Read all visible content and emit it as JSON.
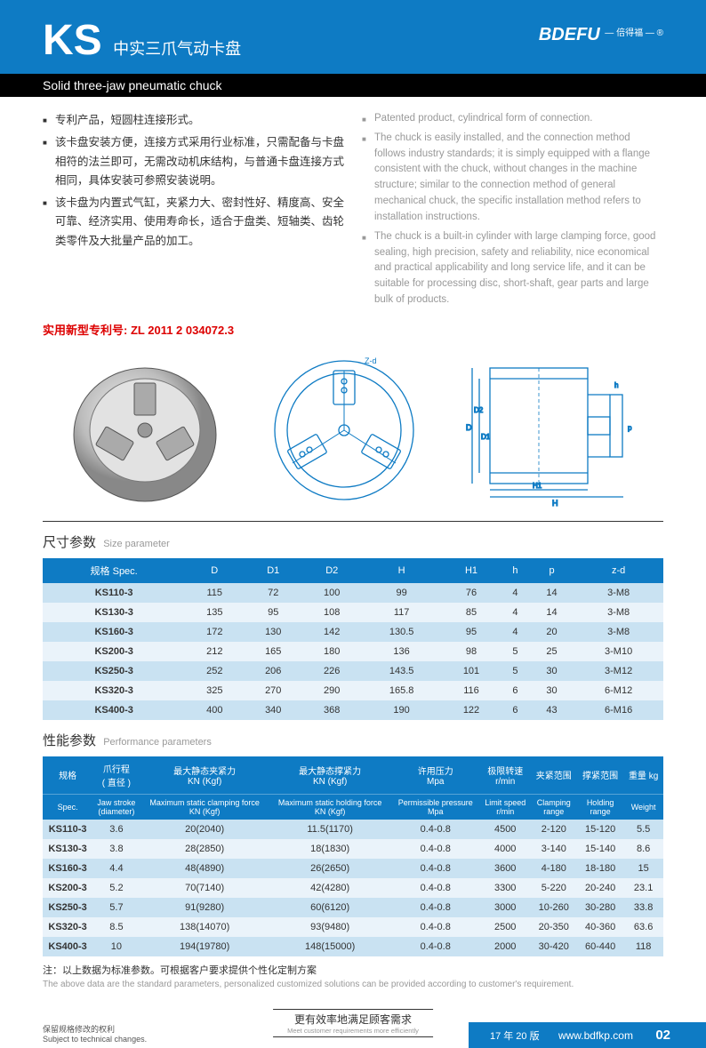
{
  "header": {
    "model": "KS",
    "title_cn": "中实三爪气动卡盘",
    "title_en": "Solid three-jaw pneumatic chuck",
    "logo_main": "BDEFU",
    "logo_tag": "— 倍得福 — ®"
  },
  "bullets_cn": [
    "专利产品，短圆柱连接形式。",
    "该卡盘安装方便，连接方式采用行业标准，只需配备与卡盘相符的法兰即可，无需改动机床结构，与普通卡盘连接方式相同，具体安装可参照安装说明。",
    "该卡盘为内置式气缸，夹紧力大、密封性好、精度高、安全可靠、经济实用、使用寿命长，适合于盘类、短轴类、齿轮类零件及大批量产品的加工。"
  ],
  "bullets_en": [
    "Patented product, cylindrical form of connection.",
    "The chuck is easily installed, and the connection method follows industry standards; it is simply equipped with a flange consistent with the chuck, without changes in the machine structure; similar to the connection method of general mechanical chuck, the specific installation method refers to installation instructions.",
    "The chuck is a built-in cylinder with large clamping force, good sealing, high precision, safety and reliability, nice economical and practical applicability and long service life, and it can be suitable for processing disc, short-shaft, gear parts and large bulk of products."
  ],
  "patent": {
    "label": "实用新型专利号:",
    "number": "ZL 2011 2 034072.3"
  },
  "size_table": {
    "title_cn": "尺寸参数",
    "title_en": "Size parameter",
    "columns": [
      "规格 Spec.",
      "D",
      "D1",
      "D2",
      "H",
      "H1",
      "h",
      "p",
      "z-d"
    ],
    "rows": [
      [
        "KS110-3",
        "115",
        "72",
        "100",
        "99",
        "76",
        "4",
        "14",
        "3-M8"
      ],
      [
        "KS130-3",
        "135",
        "95",
        "108",
        "117",
        "85",
        "4",
        "14",
        "3-M8"
      ],
      [
        "KS160-3",
        "172",
        "130",
        "142",
        "130.5",
        "95",
        "4",
        "20",
        "3-M8"
      ],
      [
        "KS200-3",
        "212",
        "165",
        "180",
        "136",
        "98",
        "5",
        "25",
        "3-M10"
      ],
      [
        "KS250-3",
        "252",
        "206",
        "226",
        "143.5",
        "101",
        "5",
        "30",
        "3-M12"
      ],
      [
        "KS320-3",
        "325",
        "270",
        "290",
        "165.8",
        "116",
        "6",
        "30",
        "6-M12"
      ],
      [
        "KS400-3",
        "400",
        "340",
        "368",
        "190",
        "122",
        "6",
        "43",
        "6-M16"
      ]
    ],
    "header_bg": "#0e7bc4",
    "row_even_bg": "#c9e2f2",
    "row_odd_bg": "#eaf3fa"
  },
  "perf_table": {
    "title_cn": "性能参数",
    "title_en": "Performance parameters",
    "header_cn": [
      "规格",
      "爪行程\n( 直径 )",
      "最大静态夹紧力\nKN (Kgf)",
      "最大静态撑紧力\nKN (Kgf)",
      "许用压力\nMpa",
      "极限转速\nr/min",
      "夹紧范围",
      "撑紧范围",
      "重量 kg"
    ],
    "header_en": [
      "Spec.",
      "Jaw stroke\n(diameter)",
      "Maximum static clamping force\nKN (Kgf)",
      "Maximum static holding force\nKN (Kgf)",
      "Permissible pressure\nMpa",
      "Limit speed\nr/min",
      "Clamping\nrange",
      "Holding\nrange",
      "Weight"
    ],
    "rows": [
      [
        "KS110-3",
        "3.6",
        "20(2040)",
        "11.5(1170)",
        "0.4-0.8",
        "4500",
        "2-120",
        "15-120",
        "5.5"
      ],
      [
        "KS130-3",
        "3.8",
        "28(2850)",
        "18(1830)",
        "0.4-0.8",
        "4000",
        "3-140",
        "15-140",
        "8.6"
      ],
      [
        "KS160-3",
        "4.4",
        "48(4890)",
        "26(2650)",
        "0.4-0.8",
        "3600",
        "4-180",
        "18-180",
        "15"
      ],
      [
        "KS200-3",
        "5.2",
        "70(7140)",
        "42(4280)",
        "0.4-0.8",
        "3300",
        "5-220",
        "20-240",
        "23.1"
      ],
      [
        "KS250-3",
        "5.7",
        "91(9280)",
        "60(6120)",
        "0.4-0.8",
        "3000",
        "10-260",
        "30-280",
        "33.8"
      ],
      [
        "KS320-3",
        "8.5",
        "138(14070)",
        "93(9480)",
        "0.4-0.8",
        "2500",
        "20-350",
        "40-360",
        "63.6"
      ],
      [
        "KS400-3",
        "10",
        "194(19780)",
        "148(15000)",
        "0.4-0.8",
        "2000",
        "30-420",
        "60-440",
        "118"
      ]
    ]
  },
  "note": {
    "cn": "注：以上数据为标准参数。可根据客户要求提供个性化定制方案",
    "en": "The above data are the standard parameters, personalized customized solutions can be provided according to customer's requirement."
  },
  "footer": {
    "left_cn": "保留规格修改的权利",
    "left_en": "Subject to technical changes.",
    "center_cn": "更有效率地满足顾客需求",
    "center_en": "Meet customer requirements more efficiently",
    "version": "17 年 20 版",
    "url": "www.bdfkp.com",
    "page": "02"
  },
  "colors": {
    "brand_blue": "#0e7bc4",
    "black": "#000000",
    "text_gray": "#999999",
    "patent_red": "#d00000"
  }
}
